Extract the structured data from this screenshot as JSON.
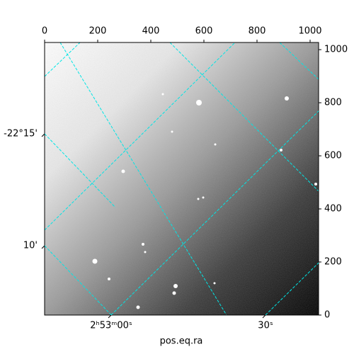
{
  "chart_data": {
    "type": "image",
    "xlabel": "pos.eq.ra",
    "xlim": [
      0,
      1032
    ],
    "xticks": [
      0,
      200,
      400,
      600,
      800,
      1000
    ],
    "ylim": [
      0,
      1027
    ],
    "yticks": [
      0,
      200,
      400,
      600,
      800,
      1000
    ],
    "ra_ticks": [
      {
        "value": 43.25,
        "label": "2ʰ53ᵐ00ˢ"
      },
      {
        "value": 43.375,
        "label": "30ˢ"
      }
    ],
    "dec_ticks": [
      {
        "value": -22.25,
        "label": "-22°15'"
      },
      {
        "value": -22.1667,
        "label": "10'"
      }
    ]
  }
}
